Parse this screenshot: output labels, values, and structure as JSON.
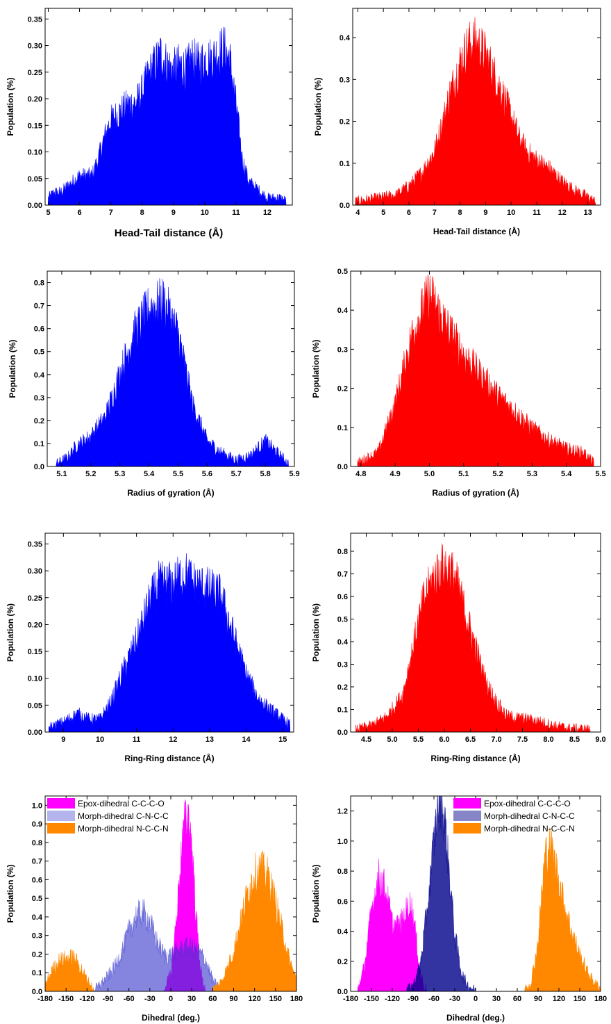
{
  "colors": {
    "blue": "#0000ff",
    "red": "#ff0000",
    "magenta": "#ff00ff",
    "slate": "#3333cc",
    "orange": "#ff8800"
  },
  "chart_data": [
    {
      "type": "area",
      "color": "#0000ff",
      "xlabel": "Head-Tail distance (Å)",
      "ylabel": "Population (%)",
      "xlim": [
        4.9,
        12.8
      ],
      "ylim": [
        0,
        0.37
      ],
      "xticks": [
        5,
        6,
        7,
        8,
        9,
        10,
        11,
        12
      ],
      "xtick_labels": [
        "5",
        "6",
        "7",
        "8",
        "9",
        "10",
        "11",
        "12"
      ],
      "yticks": [
        0,
        0.05,
        0.1,
        0.15,
        0.2,
        0.25,
        0.3,
        0.35
      ],
      "ytick_labels": [
        "0.00",
        "0.05",
        "0.10",
        "0.15",
        "0.20",
        "0.25",
        "0.30",
        "0.35"
      ],
      "series": [
        {
          "color": "#0000ff",
          "x": [
            5.0,
            5.2,
            5.4,
            5.6,
            5.8,
            6.0,
            6.2,
            6.4,
            6.6,
            6.8,
            7.0,
            7.2,
            7.4,
            7.6,
            7.8,
            8.0,
            8.2,
            8.4,
            8.6,
            8.8,
            9.0,
            9.2,
            9.4,
            9.6,
            9.8,
            10.0,
            10.2,
            10.4,
            10.6,
            10.8,
            11.0,
            11.2,
            11.4,
            11.6,
            11.8,
            12.0,
            12.2,
            12.4,
            12.6
          ],
          "y": [
            0.01,
            0.02,
            0.02,
            0.03,
            0.04,
            0.05,
            0.05,
            0.05,
            0.08,
            0.12,
            0.15,
            0.16,
            0.17,
            0.18,
            0.18,
            0.2,
            0.23,
            0.25,
            0.27,
            0.25,
            0.24,
            0.25,
            0.24,
            0.26,
            0.25,
            0.26,
            0.26,
            0.27,
            0.28,
            0.26,
            0.18,
            0.08,
            0.04,
            0.03,
            0.02,
            0.01,
            0.01,
            0.01,
            0.005
          ]
        }
      ]
    },
    {
      "type": "area",
      "color": "#ff0000",
      "xlabel": "Head-Tail distance (Å)",
      "ylabel": "Population (%)",
      "xlim": [
        3.8,
        13.5
      ],
      "ylim": [
        0,
        0.47
      ],
      "xticks": [
        4,
        5,
        6,
        7,
        8,
        9,
        10,
        11,
        12,
        13
      ],
      "xtick_labels": [
        "4",
        "5",
        "6",
        "7",
        "8",
        "9",
        "10",
        "11",
        "12",
        "13"
      ],
      "yticks": [
        0,
        0.1,
        0.2,
        0.3,
        0.4
      ],
      "ytick_labels": [
        "0.0",
        "0.1",
        "0.2",
        "0.3",
        "0.4"
      ],
      "series": [
        {
          "color": "#ff0000",
          "x": [
            3.9,
            4.5,
            5.0,
            5.5,
            6.0,
            6.5,
            7.0,
            7.3,
            7.6,
            8.0,
            8.3,
            8.6,
            9.0,
            9.3,
            9.6,
            10.0,
            10.3,
            10.6,
            11.0,
            11.5,
            12.0,
            12.5,
            13.0,
            13.3
          ],
          "y": [
            0.005,
            0.01,
            0.015,
            0.02,
            0.04,
            0.07,
            0.12,
            0.18,
            0.25,
            0.32,
            0.36,
            0.37,
            0.34,
            0.3,
            0.26,
            0.2,
            0.15,
            0.12,
            0.1,
            0.08,
            0.05,
            0.03,
            0.015,
            0.005
          ]
        }
      ]
    },
    {
      "type": "area",
      "color": "#0000ff",
      "xlabel": "Radius of gyration (Å)",
      "ylabel": "Population (%)",
      "xlim": [
        5.05,
        5.9
      ],
      "ylim": [
        0,
        0.85
      ],
      "xticks": [
        5.1,
        5.2,
        5.3,
        5.4,
        5.5,
        5.6,
        5.7,
        5.8,
        5.9
      ],
      "xtick_labels": [
        "5.1",
        "5.2",
        "5.3",
        "5.4",
        "5.5",
        "5.6",
        "5.7",
        "5.8",
        "5.9"
      ],
      "yticks": [
        0,
        0.1,
        0.2,
        0.3,
        0.4,
        0.5,
        0.6,
        0.7,
        0.8
      ],
      "ytick_labels": [
        "0.0",
        "0.1",
        "0.2",
        "0.3",
        "0.4",
        "0.5",
        "0.6",
        "0.7",
        "0.8"
      ],
      "series": [
        {
          "color": "#0000ff",
          "x": [
            5.08,
            5.12,
            5.15,
            5.2,
            5.25,
            5.3,
            5.35,
            5.4,
            5.45,
            5.5,
            5.55,
            5.6,
            5.65,
            5.7,
            5.75,
            5.8,
            5.85,
            5.88
          ],
          "y": [
            0.005,
            0.03,
            0.08,
            0.12,
            0.2,
            0.38,
            0.55,
            0.65,
            0.68,
            0.55,
            0.25,
            0.1,
            0.05,
            0.02,
            0.04,
            0.1,
            0.04,
            0.005
          ]
        }
      ]
    },
    {
      "type": "area",
      "color": "#ff0000",
      "xlabel": "Radius of gyration (Å)",
      "ylabel": "Population (%)",
      "xlim": [
        4.77,
        5.5
      ],
      "ylim": [
        0,
        0.5
      ],
      "xticks": [
        4.8,
        4.9,
        5.0,
        5.1,
        5.2,
        5.3,
        5.4,
        5.5
      ],
      "xtick_labels": [
        "4.8",
        "4.9",
        "5.0",
        "5.1",
        "5.2",
        "5.3",
        "5.4",
        "5.5"
      ],
      "yticks": [
        0,
        0.1,
        0.2,
        0.3,
        0.4,
        0.5
      ],
      "ytick_labels": [
        "0.0",
        "0.1",
        "0.2",
        "0.3",
        "0.4",
        "0.5"
      ],
      "series": [
        {
          "color": "#ff0000",
          "x": [
            4.79,
            4.85,
            4.9,
            4.95,
            5.0,
            5.05,
            5.1,
            5.15,
            5.2,
            5.25,
            5.3,
            5.35,
            5.4,
            5.45,
            5.48
          ],
          "y": [
            0.005,
            0.03,
            0.15,
            0.32,
            0.42,
            0.34,
            0.27,
            0.22,
            0.17,
            0.13,
            0.09,
            0.06,
            0.04,
            0.03,
            0.005
          ]
        }
      ]
    },
    {
      "type": "area",
      "color": "#0000ff",
      "xlabel": "Ring-Ring distance (Å)",
      "ylabel": "Population (%)",
      "xlim": [
        8.5,
        15.3
      ],
      "ylim": [
        0,
        0.37
      ],
      "xticks": [
        9,
        10,
        11,
        12,
        13,
        14,
        15
      ],
      "xtick_labels": [
        "9",
        "10",
        "11",
        "12",
        "13",
        "14",
        "15"
      ],
      "yticks": [
        0,
        0.05,
        0.1,
        0.15,
        0.2,
        0.25,
        0.3,
        0.35
      ],
      "ytick_labels": [
        "0.00",
        "0.05",
        "0.10",
        "0.15",
        "0.20",
        "0.25",
        "0.30",
        "0.35"
      ],
      "series": [
        {
          "color": "#0000ff",
          "x": [
            8.6,
            9.0,
            9.4,
            9.7,
            10.0,
            10.3,
            10.6,
            11.0,
            11.3,
            11.6,
            12.0,
            12.3,
            12.6,
            13.0,
            13.3,
            13.6,
            14.0,
            14.3,
            14.6,
            15.0,
            15.2
          ],
          "y": [
            0.005,
            0.015,
            0.03,
            0.02,
            0.02,
            0.05,
            0.1,
            0.16,
            0.22,
            0.26,
            0.26,
            0.28,
            0.26,
            0.25,
            0.24,
            0.18,
            0.1,
            0.06,
            0.04,
            0.02,
            0.01
          ]
        }
      ]
    },
    {
      "type": "area",
      "color": "#ff0000",
      "xlabel": "Ring-Ring distance (Å)",
      "ylabel": "Population (%)",
      "xlim": [
        4.2,
        9.0
      ],
      "ylim": [
        0,
        0.88
      ],
      "xticks": [
        4.5,
        5.0,
        5.5,
        6.0,
        6.5,
        7.0,
        7.5,
        8.0,
        8.5,
        9.0
      ],
      "xtick_labels": [
        "4.5",
        "5.0",
        "5.5",
        "6.0",
        "6.5",
        "7.0",
        "7.5",
        "8.0",
        "8.5",
        "9.0"
      ],
      "yticks": [
        0,
        0.1,
        0.2,
        0.3,
        0.4,
        0.5,
        0.6,
        0.7,
        0.8
      ],
      "ytick_labels": [
        "0.0",
        "0.1",
        "0.2",
        "0.3",
        "0.4",
        "0.5",
        "0.6",
        "0.7",
        "0.8"
      ],
      "series": [
        {
          "color": "#ff0000",
          "x": [
            4.3,
            4.6,
            4.9,
            5.2,
            5.4,
            5.6,
            5.8,
            6.0,
            6.2,
            6.4,
            6.6,
            6.8,
            7.0,
            7.2,
            7.5,
            7.8,
            8.1,
            8.4,
            8.8
          ],
          "y": [
            0.005,
            0.02,
            0.06,
            0.15,
            0.35,
            0.55,
            0.65,
            0.7,
            0.65,
            0.5,
            0.35,
            0.2,
            0.12,
            0.06,
            0.05,
            0.04,
            0.02,
            0.01,
            0.005
          ]
        }
      ]
    },
    {
      "type": "area",
      "xlabel": "Dihedral (deg.)",
      "ylabel": "Population (%)",
      "xlim": [
        -180,
        180
      ],
      "ylim": [
        0,
        1.05
      ],
      "xticks": [
        -180,
        -150,
        -120,
        -90,
        -60,
        -30,
        0,
        30,
        60,
        90,
        120,
        150,
        180
      ],
      "xtick_labels": [
        "-180",
        "-150",
        "-120",
        "-90",
        "-60",
        "-30",
        "0",
        "30",
        "60",
        "90",
        "120",
        "150",
        "180"
      ],
      "yticks": [
        0,
        0.1,
        0.2,
        0.3,
        0.4,
        0.5,
        0.6,
        0.7,
        0.8,
        0.9,
        1.0
      ],
      "ytick_labels": [
        "0.0",
        "0.1",
        "0.2",
        "0.3",
        "0.4",
        "0.5",
        "0.6",
        "0.7",
        "0.8",
        "0.9",
        "1.0"
      ],
      "legend": "top-left",
      "series": [
        {
          "name": "Epox-dihedral C-C-C-O",
          "color": "#ff00ff",
          "x": [
            -10,
            0,
            5,
            10,
            15,
            20,
            25,
            30,
            35,
            40,
            45,
            50
          ],
          "y": [
            0.0,
            0.08,
            0.25,
            0.45,
            0.7,
            0.85,
            0.9,
            0.75,
            0.45,
            0.2,
            0.05,
            0.0
          ]
        },
        {
          "name": "Morph-dihedral C-N-C-C",
          "color": "#3333cc",
          "opacity": 0.6,
          "x": [
            -110,
            -100,
            -90,
            -80,
            -70,
            -60,
            -50,
            -40,
            -30,
            -20,
            -10,
            0,
            10,
            20,
            30,
            40,
            50,
            60,
            70
          ],
          "y": [
            0.0,
            0.03,
            0.07,
            0.12,
            0.2,
            0.3,
            0.38,
            0.4,
            0.35,
            0.25,
            0.18,
            0.18,
            0.2,
            0.22,
            0.22,
            0.2,
            0.15,
            0.05,
            0.0
          ]
        },
        {
          "name": "Morph-dihedral N-C-C-N",
          "color": "#ff8800",
          "x": [
            -180,
            -170,
            -160,
            -150,
            -140,
            -130,
            -120,
            -110,
            60,
            70,
            80,
            90,
            100,
            110,
            120,
            130,
            140,
            150,
            160,
            170,
            180
          ],
          "y": [
            0.02,
            0.1,
            0.15,
            0.16,
            0.17,
            0.12,
            0.05,
            0.0,
            0.0,
            0.03,
            0.1,
            0.2,
            0.35,
            0.5,
            0.6,
            0.62,
            0.58,
            0.45,
            0.3,
            0.15,
            0.05
          ]
        }
      ]
    },
    {
      "type": "area",
      "xlabel": "Dihedral (deg.)",
      "ylabel": "Population (%)",
      "xlim": [
        -180,
        180
      ],
      "ylim": [
        0,
        1.3
      ],
      "xticks": [
        -180,
        -150,
        -120,
        -90,
        -60,
        -30,
        0,
        30,
        60,
        90,
        120,
        150,
        180
      ],
      "xtick_labels": [
        "-180",
        "-150",
        "-120",
        "-90",
        "-60",
        "-30",
        "0",
        "30",
        "60",
        "90",
        "120",
        "150",
        "180"
      ],
      "yticks": [
        0,
        0.2,
        0.4,
        0.6,
        0.8,
        1.0,
        1.2
      ],
      "ytick_labels": [
        "0.0",
        "0.2",
        "0.4",
        "0.6",
        "0.8",
        "1.0",
        "1.2"
      ],
      "legend": "top-right",
      "series": [
        {
          "name": "Epox-dihedral C-C-C-O",
          "color": "#ff00ff",
          "x": [
            -170,
            -160,
            -150,
            -140,
            -130,
            -120,
            -110,
            -100,
            -95,
            -90,
            -85,
            -80,
            -75,
            -70
          ],
          "y": [
            0.0,
            0.15,
            0.5,
            0.72,
            0.65,
            0.42,
            0.4,
            0.5,
            0.55,
            0.48,
            0.3,
            0.12,
            0.03,
            0.0
          ]
        },
        {
          "name": "Morph-dihedral C-N-C-C",
          "color": "#00008b",
          "opacity": 0.8,
          "x": [
            -100,
            -90,
            -80,
            -70,
            -60,
            -55,
            -50,
            -45,
            -40,
            -30,
            -20,
            -10,
            0
          ],
          "y": [
            0.0,
            0.03,
            0.15,
            0.5,
            0.95,
            1.15,
            1.2,
            1.1,
            0.85,
            0.35,
            0.1,
            0.02,
            0.0
          ]
        },
        {
          "name": "Morph-dihedral N-C-C-N",
          "color": "#ff8800",
          "x": [
            70,
            80,
            90,
            95,
            100,
            105,
            110,
            120,
            130,
            140,
            150,
            160,
            170,
            180
          ],
          "y": [
            0.0,
            0.05,
            0.3,
            0.6,
            0.85,
            0.92,
            0.88,
            0.7,
            0.5,
            0.35,
            0.22,
            0.12,
            0.05,
            0.01
          ]
        }
      ]
    }
  ]
}
